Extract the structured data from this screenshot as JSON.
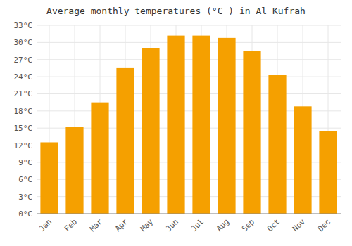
{
  "chart_data": {
    "type": "bar",
    "title": "Average monthly temperatures (°C ) in Al Kufrah",
    "categories": [
      "Jan",
      "Feb",
      "Mar",
      "Apr",
      "May",
      "Jun",
      "Jul",
      "Aug",
      "Sep",
      "Oct",
      "Nov",
      "Dec"
    ],
    "values": [
      12.5,
      15.2,
      19.5,
      25.5,
      29.0,
      31.2,
      31.2,
      30.8,
      28.5,
      24.3,
      18.8,
      14.5
    ],
    "color": "#f5a000",
    "ylim": [
      0,
      33
    ],
    "yticks": [
      {
        "value": 0,
        "label": "0°C"
      },
      {
        "value": 3,
        "label": "3°C"
      },
      {
        "value": 6,
        "label": "6°C"
      },
      {
        "value": 9,
        "label": "9°C"
      },
      {
        "value": 12,
        "label": "12°C"
      },
      {
        "value": 15,
        "label": "15°C"
      },
      {
        "value": 18,
        "label": "18°C"
      },
      {
        "value": 21,
        "label": "21°C"
      },
      {
        "value": 24,
        "label": "24°C"
      },
      {
        "value": 27,
        "label": "27°C"
      },
      {
        "value": 30,
        "label": "30°C"
      },
      {
        "value": 33,
        "label": "33°C"
      }
    ],
    "grid": true
  }
}
